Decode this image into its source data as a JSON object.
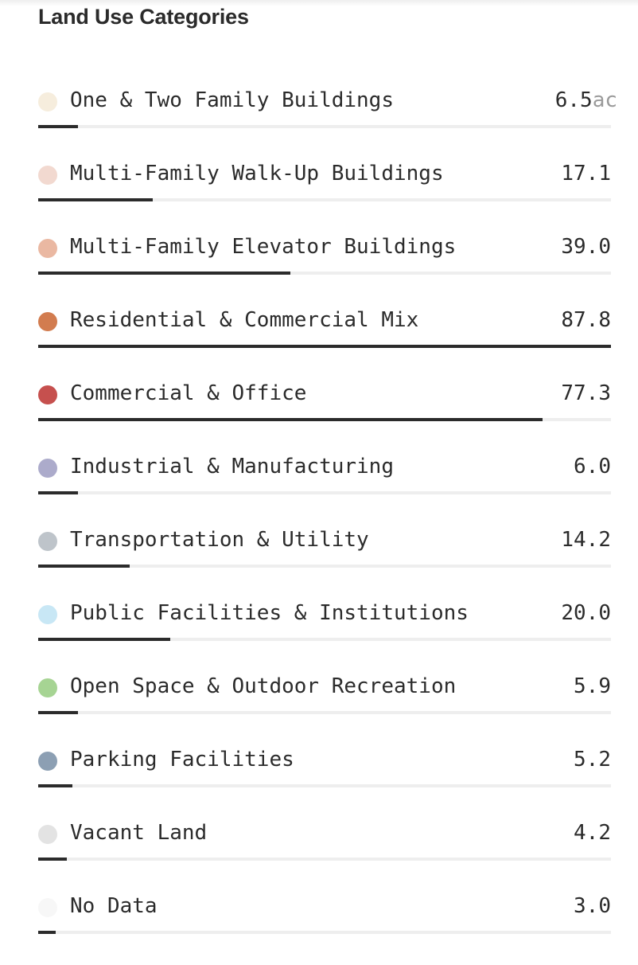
{
  "panel": {
    "title": "Land Use Categories"
  },
  "categories": [
    {
      "label": "One & Two Family Buildings",
      "value": "6.5",
      "unit": "ac",
      "color": "#f6eddd",
      "bar_fraction": 0.07
    },
    {
      "label": "Multi-Family Walk-Up Buildings",
      "value": "17.1",
      "color": "#f2d9d0",
      "bar_fraction": 0.2
    },
    {
      "label": "Multi-Family Elevator Buildings",
      "value": "39.0",
      "color": "#eab8a2",
      "bar_fraction": 0.44
    },
    {
      "label": "Residential & Commercial Mix",
      "value": "87.8",
      "color": "#d27c4f",
      "bar_fraction": 1.0
    },
    {
      "label": "Commercial & Office",
      "value": "77.3",
      "color": "#c6504e",
      "bar_fraction": 0.88
    },
    {
      "label": "Industrial & Manufacturing",
      "value": "6.0",
      "color": "#acabcb",
      "bar_fraction": 0.07
    },
    {
      "label": "Transportation & Utility",
      "value": "14.2",
      "color": "#bec4ca",
      "bar_fraction": 0.16
    },
    {
      "label": "Public Facilities & Institutions",
      "value": "20.0",
      "color": "#c8e7f5",
      "bar_fraction": 0.23
    },
    {
      "label": "Open Space & Outdoor Recreation",
      "value": "5.9",
      "color": "#a6d493",
      "bar_fraction": 0.07
    },
    {
      "label": "Parking Facilities",
      "value": "5.2",
      "color": "#8c9fb3",
      "bar_fraction": 0.06
    },
    {
      "label": "Vacant Land",
      "value": "4.2",
      "color": "#e3e3e3",
      "bar_fraction": 0.05
    },
    {
      "label": "No Data",
      "value": "3.0",
      "color": "#f7f7f7",
      "bar_fraction": 0.03
    }
  ]
}
